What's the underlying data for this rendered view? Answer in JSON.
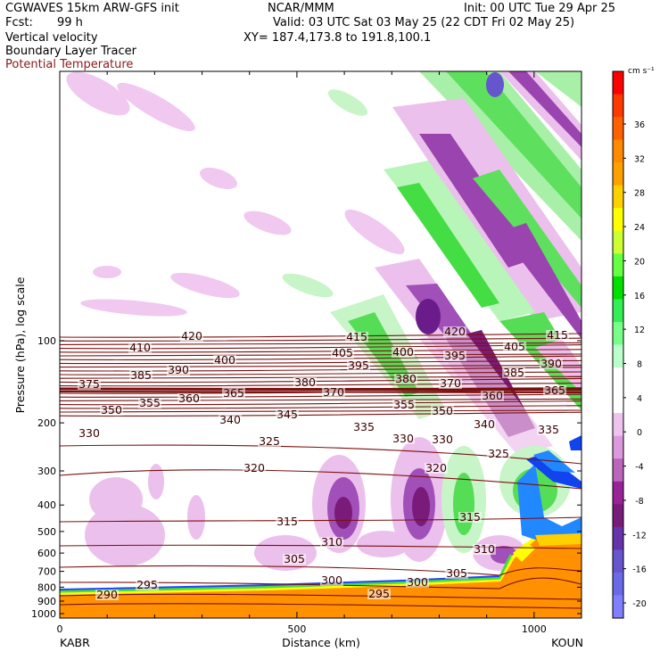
{
  "header": {
    "model": "CGWAVES 15km ARW-GFS init",
    "center": "NCAR/MMM",
    "init": "Init: 00 UTC Tue 29 Apr 25",
    "fcst_label": "Fcst:",
    "fcst_value": "99 h",
    "valid": "Valid: 03 UTC Sat 03 May 25 (22 CDT Fri 02 May 25)",
    "field1": "Vertical velocity",
    "xy": "XY= 187.4,173.8 to 191.8,100.1",
    "field2": "Boundary Layer Tracer",
    "field3": "Potential Temperature",
    "field3_color": "#8b1a1a"
  },
  "chart_data": {
    "type": "heatmap",
    "title": "",
    "xlabel": "Distance (km)",
    "ylabel": "Pressure (hPa), log scale",
    "x_ticks": [
      "0",
      "500",
      "1000"
    ],
    "y_ticks": [
      "100",
      "200",
      "300",
      "400",
      "500",
      "600",
      "700",
      "800",
      "900",
      "1000"
    ],
    "left_endpoint": "KABR",
    "right_endpoint": "KOUN",
    "colorbar": {
      "unit": "cm s⁻¹",
      "labels": [
        "36",
        "32",
        "28",
        "24",
        "20",
        "16",
        "12",
        "8",
        "4",
        "0",
        "-4",
        "-8",
        "-12",
        "-16",
        "-20"
      ],
      "colors": [
        "#ff0000",
        "#ff3a00",
        "#ff6000",
        "#ff8a00",
        "#ffa000",
        "#ffd000",
        "#ffff00",
        "#ccff33",
        "#66ff44",
        "#00e000",
        "#33ee55",
        "#77ff88",
        "#bbffcc",
        "#ffffff",
        "#ffffff",
        "#eec4ee",
        "#dd99dd",
        "#bb66bb",
        "#992299",
        "#7a1b7a",
        "#6633aa",
        "#6655cc",
        "#6a6ae8",
        "#7f7fff"
      ]
    },
    "theta_contours": {
      "color": "#7a1010",
      "labels": [
        {
          "text": "420",
          "x": 215,
          "y": 379
        },
        {
          "text": "410",
          "x": 157,
          "y": 392
        },
        {
          "text": "400",
          "x": 252,
          "y": 406
        },
        {
          "text": "390",
          "x": 200,
          "y": 417
        },
        {
          "text": "385",
          "x": 158,
          "y": 423
        },
        {
          "text": "380",
          "x": 342,
          "y": 431
        },
        {
          "text": "375",
          "x": 100,
          "y": 433
        },
        {
          "text": "365",
          "x": 262,
          "y": 443
        },
        {
          "text": "360",
          "x": 212,
          "y": 449
        },
        {
          "text": "355",
          "x": 168,
          "y": 454
        },
        {
          "text": "350",
          "x": 125,
          "y": 462
        },
        {
          "text": "345",
          "x": 322,
          "y": 467
        },
        {
          "text": "340",
          "x": 258,
          "y": 473
        },
        {
          "text": "335",
          "x": 408,
          "y": 481
        },
        {
          "text": "330",
          "x": 100,
          "y": 488
        },
        {
          "text": "325",
          "x": 302,
          "y": 497
        },
        {
          "text": "320",
          "x": 285,
          "y": 527
        },
        {
          "text": "315",
          "x": 322,
          "y": 587
        },
        {
          "text": "310",
          "x": 372,
          "y": 610
        },
        {
          "text": "305",
          "x": 330,
          "y": 629
        },
        {
          "text": "300",
          "x": 372,
          "y": 653
        },
        {
          "text": "295",
          "x": 165,
          "y": 658
        },
        {
          "text": "290",
          "x": 120,
          "y": 669
        },
        {
          "text": "415",
          "x": 400,
          "y": 380
        },
        {
          "text": "405",
          "x": 384,
          "y": 398
        },
        {
          "text": "400",
          "x": 452,
          "y": 397
        },
        {
          "text": "395",
          "x": 402,
          "y": 412
        },
        {
          "text": "380",
          "x": 455,
          "y": 427
        },
        {
          "text": "370",
          "x": 374,
          "y": 442
        },
        {
          "text": "355",
          "x": 453,
          "y": 456
        },
        {
          "text": "330",
          "x": 452,
          "y": 494
        },
        {
          "text": "330",
          "x": 496,
          "y": 495
        },
        {
          "text": "420",
          "x": 510,
          "y": 374
        },
        {
          "text": "395",
          "x": 510,
          "y": 401
        },
        {
          "text": "370",
          "x": 505,
          "y": 432
        },
        {
          "text": "350",
          "x": 496,
          "y": 463
        },
        {
          "text": "340",
          "x": 543,
          "y": 478
        },
        {
          "text": "325",
          "x": 559,
          "y": 511
        },
        {
          "text": "320",
          "x": 489,
          "y": 527
        },
        {
          "text": "315",
          "x": 527,
          "y": 582
        },
        {
          "text": "310",
          "x": 543,
          "y": 618
        },
        {
          "text": "305",
          "x": 512,
          "y": 645
        },
        {
          "text": "300",
          "x": 468,
          "y": 655
        },
        {
          "text": "295",
          "x": 425,
          "y": 668
        },
        {
          "text": "405",
          "x": 577,
          "y": 391
        },
        {
          "text": "385",
          "x": 576,
          "y": 420
        },
        {
          "text": "360",
          "x": 552,
          "y": 446
        },
        {
          "text": "415",
          "x": 625,
          "y": 378
        },
        {
          "text": "390",
          "x": 618,
          "y": 410
        },
        {
          "text": "335",
          "x": 615,
          "y": 484
        },
        {
          "text": "365",
          "x": 622,
          "y": 440
        }
      ]
    }
  }
}
